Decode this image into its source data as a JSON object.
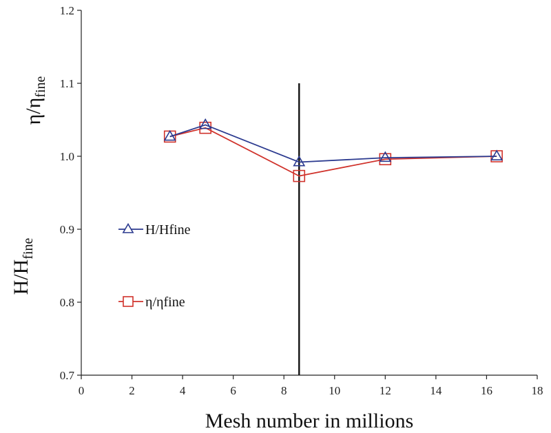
{
  "chart_data": {
    "type": "line",
    "title": "",
    "xlabel": "Mesh number in millions",
    "ylabel": {
      "top": {
        "base": "η/η",
        "sub": "fine"
      },
      "bottom": {
        "base": "H/H",
        "sub": "fine"
      }
    },
    "xlim": [
      0,
      18
    ],
    "ylim": [
      0.7,
      1.2
    ],
    "xticks": [
      "0",
      "2",
      "4",
      "6",
      "8",
      "10",
      "12",
      "14",
      "16",
      "18"
    ],
    "yticks": [
      "0.7",
      "0.8",
      "0.9",
      "1.0",
      "1.1",
      "1.2"
    ],
    "grid": false,
    "legend_position": "left",
    "reference_line_x": 8.6,
    "series": [
      {
        "name": "H/Hfine",
        "color": "#2b3a8f",
        "marker": "triangle",
        "x": [
          3.5,
          4.9,
          8.6,
          12.0,
          16.4
        ],
        "y": [
          1.027,
          1.043,
          0.992,
          0.998,
          1.0
        ]
      },
      {
        "name": "η/ηfine",
        "color": "#d0322b",
        "marker": "square",
        "x": [
          3.5,
          4.9,
          8.6,
          12.0,
          16.4
        ],
        "y": [
          1.027,
          1.039,
          0.973,
          0.996,
          1.0
        ]
      }
    ]
  }
}
